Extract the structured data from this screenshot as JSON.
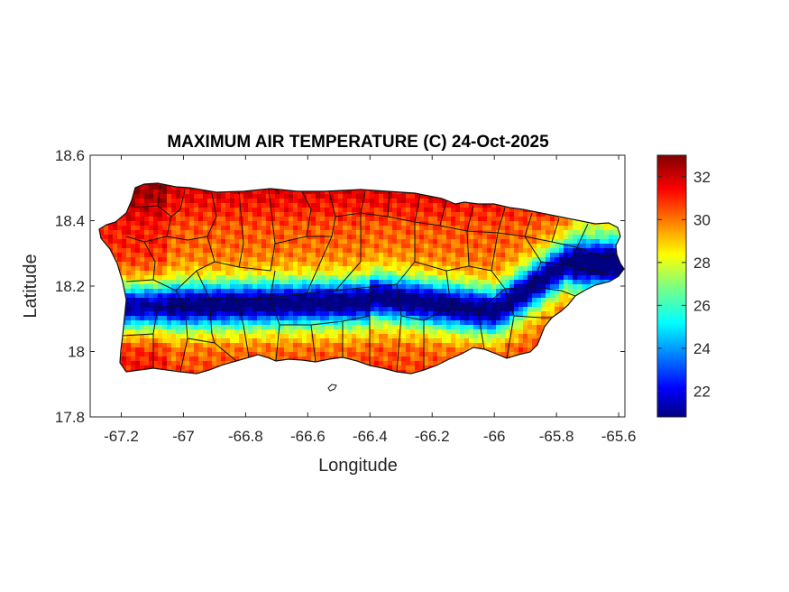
{
  "title": "MAXIMUM AIR TEMPERATURE (C) 24-Oct-2025",
  "xlabel": "Longitude",
  "ylabel": "Latitude",
  "chart_data": {
    "type": "heatmap",
    "title": "MAXIMUM AIR TEMPERATURE (C) 24-Oct-2025",
    "xlabel": "Longitude",
    "ylabel": "Latitude",
    "xlim": [
      -67.3,
      -65.58
    ],
    "ylim": [
      17.8,
      18.6
    ],
    "x_ticks": [
      -67.2,
      -67,
      -66.8,
      -66.6,
      -66.4,
      -66.2,
      -66,
      -65.8,
      -65.6
    ],
    "x_tick_labels": [
      "-67.2",
      "-67",
      "-66.8",
      "-66.6",
      "-66.4",
      "-66.2",
      "-66",
      "-65.8",
      "-65.6"
    ],
    "y_ticks": [
      17.8,
      18,
      18.2,
      18.4,
      18.6
    ],
    "y_tick_labels": [
      "17.8",
      "18",
      "18.2",
      "18.4",
      "18.6"
    ],
    "colorbar": {
      "colormap": "jet",
      "range": [
        20.8,
        33
      ],
      "ticks": [
        22,
        24,
        26,
        28,
        30,
        32
      ],
      "tick_labels": [
        "22",
        "24",
        "26",
        "28",
        "30",
        "32"
      ]
    },
    "grid": false,
    "fields": {
      "north_coast_max_c": 32.5,
      "central_mountains_min_c": 21.5,
      "south_coast_c": 29.5
    }
  }
}
